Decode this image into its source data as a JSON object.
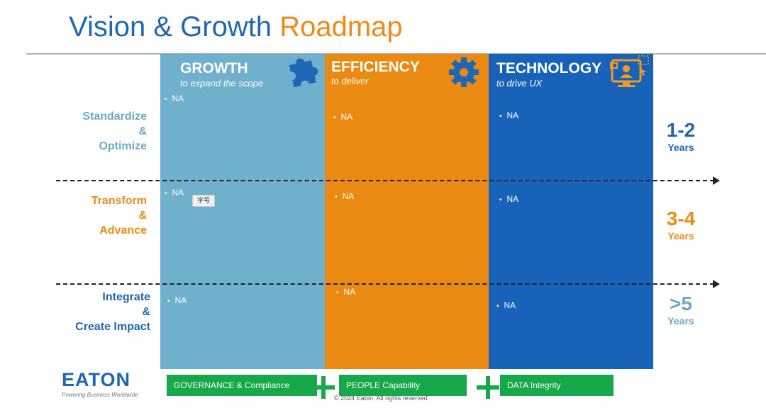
{
  "slide": {
    "title_part1": "Vision & Growth",
    "title_part2": "Roadmap"
  },
  "columns": [
    {
      "heading": "GROWTH",
      "subtitle": "to expand the scope",
      "icon": "puzzle-icon",
      "bullets": [
        "NA",
        "NA",
        "NA"
      ],
      "color": "#6fb0cc"
    },
    {
      "heading": "EFFICIENCY",
      "subtitle": "to deliver",
      "icon": "gear-icon",
      "bullets": [
        "NA",
        "NA",
        "NA"
      ],
      "color": "#eb8a12"
    },
    {
      "heading": "TECHNOLOGY",
      "subtitle": "to drive UX",
      "icon": "monitor-user-icon",
      "bullets": [
        "NA",
        "NA",
        "NA"
      ],
      "color": "#1862ba"
    }
  ],
  "rows": [
    {
      "label_lines": [
        "Standardize",
        "&",
        "Optimize"
      ],
      "years_num": "1-2",
      "years_unit": "Years"
    },
    {
      "label_lines": [
        "Transform",
        "&",
        "Advance"
      ],
      "years_num": "3-4",
      "years_unit": "Years"
    },
    {
      "label_lines": [
        "Integrate",
        "&",
        "Create Impact"
      ],
      "years_num": ">5",
      "years_unit": "Years"
    }
  ],
  "tooltip": "字号",
  "footer": {
    "pills": [
      {
        "text": "GOVERNANCE  & Compliance"
      },
      {
        "text": "PEOPLE        Capability"
      },
      {
        "text": "DATA        Integrity"
      }
    ],
    "copyright": "© 2024 Eaton. All rights reserved.",
    "logo_text": "EATON",
    "logo_tagline": "Powering Business Worldwide"
  }
}
